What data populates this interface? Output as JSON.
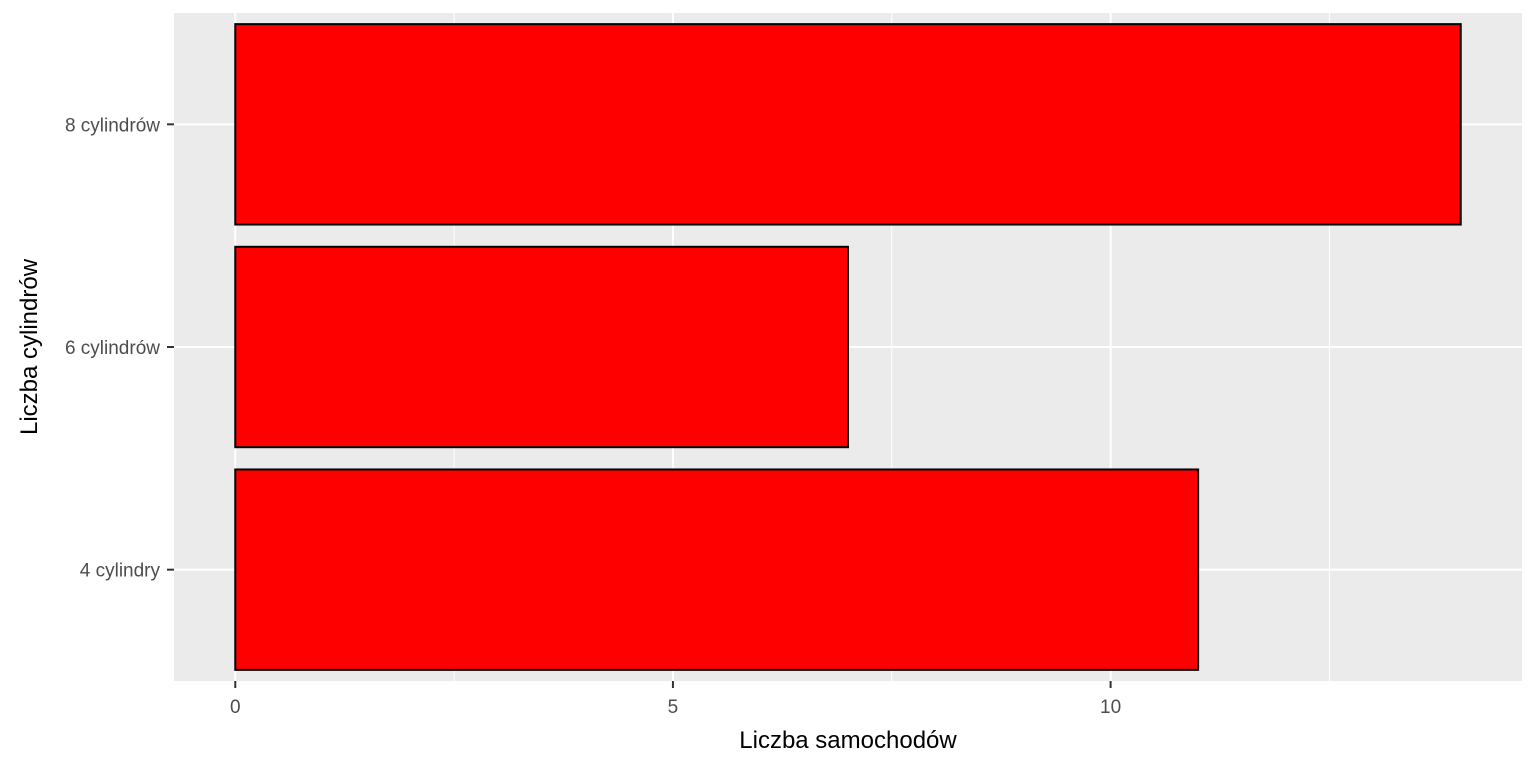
{
  "chart_data": {
    "type": "bar",
    "orientation": "horizontal",
    "categories": [
      "4 cylindry",
      "6 cylindrów",
      "8 cylindrów"
    ],
    "values": [
      11,
      7,
      14
    ],
    "xlabel": "Liczba samochodów",
    "ylabel": "Liczba cylindrów",
    "xticks": [
      "0",
      "5",
      "10"
    ],
    "xlim": [
      -0.7,
      14.7
    ],
    "grid": true,
    "colors": {
      "bar_fill": "#ff0000",
      "bar_stroke": "#000000",
      "panel_bg": "#ebebeb",
      "grid_line": "#ffffff"
    }
  }
}
